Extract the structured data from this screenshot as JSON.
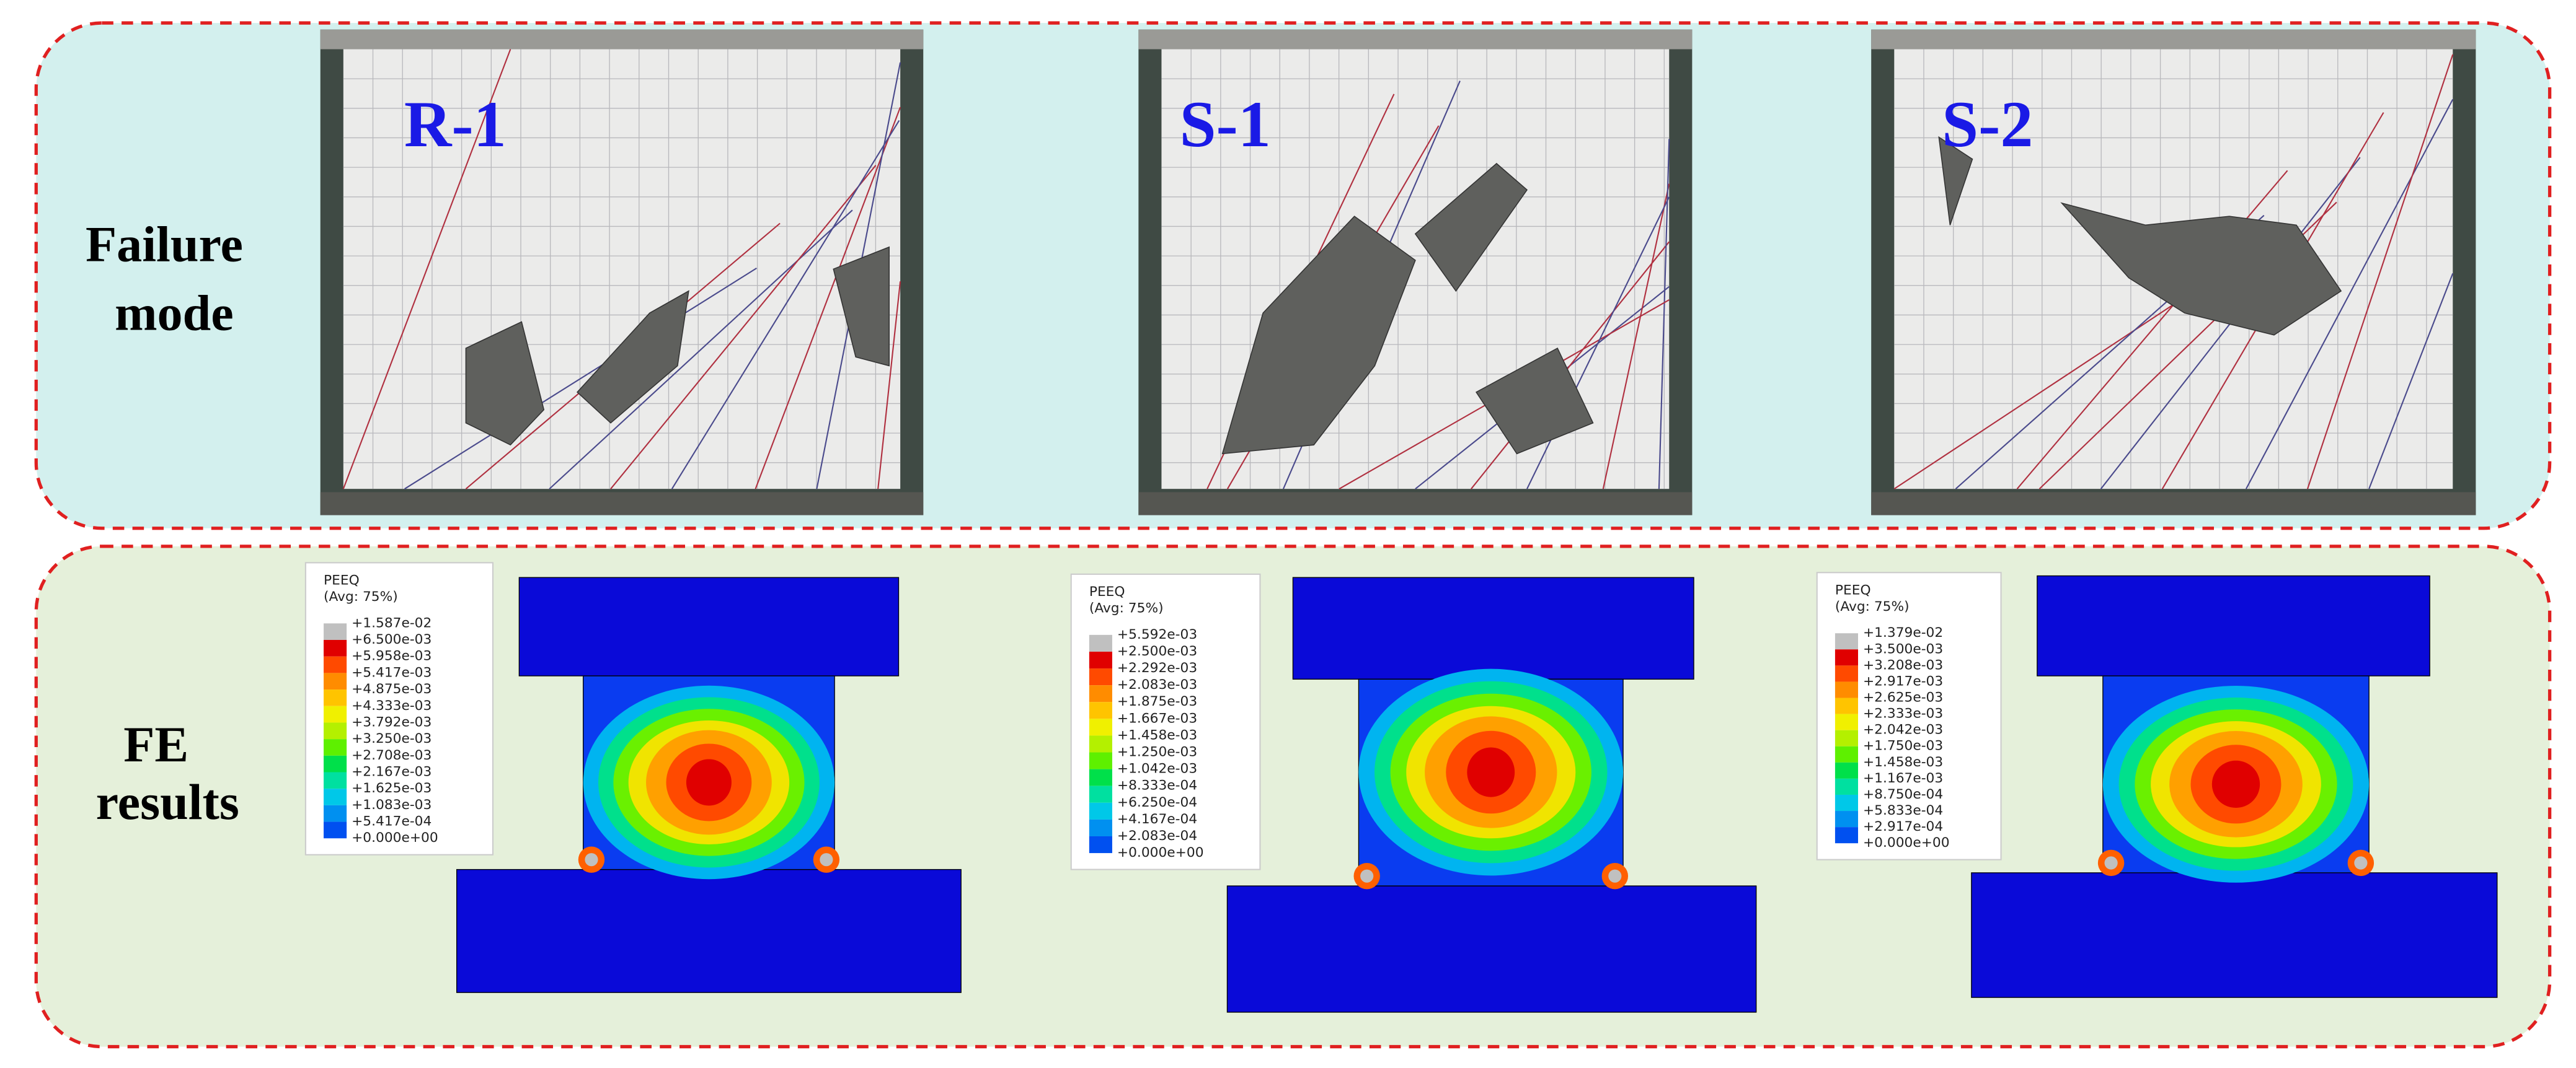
{
  "rows": [
    {
      "label": [
        "Failure",
        "mode"
      ]
    },
    {
      "label": [
        "FE",
        "results"
      ]
    }
  ],
  "specimens": [
    {
      "name": "R-1",
      "legend": {
        "title": "PEEQ",
        "subtitle": "(Avg: 75%)",
        "values": [
          "+1.587e-02",
          "+6.500e-03",
          "+5.958e-03",
          "+5.417e-03",
          "+4.875e-03",
          "+4.333e-03",
          "+3.792e-03",
          "+3.250e-03",
          "+2.708e-03",
          "+2.167e-03",
          "+1.625e-03",
          "+1.083e-03",
          "+5.417e-04",
          "+0.000e+00"
        ]
      }
    },
    {
      "name": "S-1",
      "legend": {
        "title": "PEEQ",
        "subtitle": "(Avg: 75%)",
        "values": [
          "+5.592e-03",
          "+2.500e-03",
          "+2.292e-03",
          "+2.083e-03",
          "+1.875e-03",
          "+1.667e-03",
          "+1.458e-03",
          "+1.250e-03",
          "+1.042e-03",
          "+8.333e-04",
          "+6.250e-04",
          "+4.167e-04",
          "+2.083e-04",
          "+0.000e+00"
        ]
      }
    },
    {
      "name": "S-2",
      "legend": {
        "title": "PEEQ",
        "subtitle": "(Avg: 75%)",
        "values": [
          "+1.379e-02",
          "+3.500e-03",
          "+3.208e-03",
          "+2.917e-03",
          "+2.625e-03",
          "+2.333e-03",
          "+2.042e-03",
          "+1.750e-03",
          "+1.458e-03",
          "+1.167e-03",
          "+8.750e-04",
          "+5.833e-04",
          "+2.917e-04",
          "+0.000e+00"
        ]
      }
    }
  ]
}
